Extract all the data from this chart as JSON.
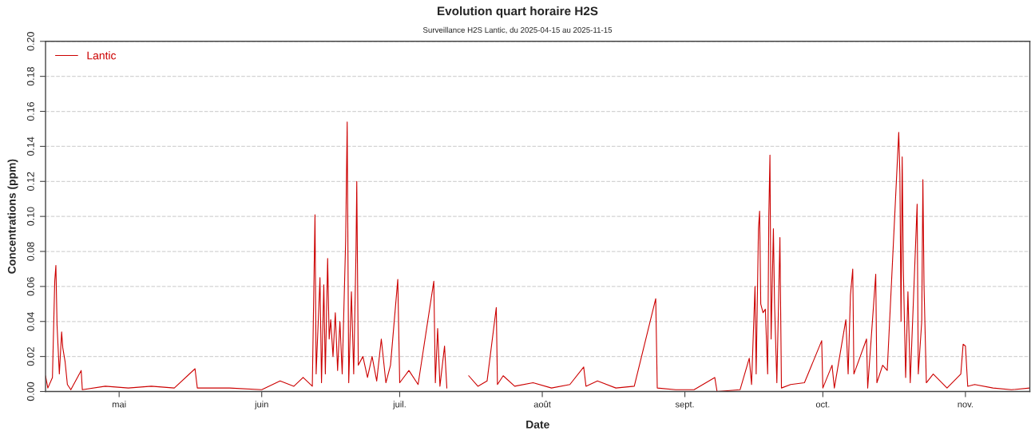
{
  "chart_data": {
    "type": "line",
    "title": "Evolution quart horaire H2S",
    "subtitle": "Surveillance H2S Lantic, du 2025-04-15 au 2025-11-15",
    "xlabel": "Date",
    "ylabel": "Concentrations (ppm)",
    "x": [
      "2025-04-15T00:00",
      "2025-04-15T12:00",
      "2025-04-16T12:00",
      "2025-04-17T00:00",
      "2025-04-17T06:00",
      "2025-04-17T12:00",
      "2025-04-18T00:00",
      "2025-04-18T12:00",
      "2025-04-18T18:00",
      "2025-04-19T06:00",
      "2025-04-19T18:00",
      "2025-04-20T12:00",
      "2025-04-22T18:00",
      "2025-04-23T00:00",
      "2025-04-28T00:00",
      "2025-05-03T00:00",
      "2025-05-08T00:00",
      "2025-05-13T00:00",
      "2025-05-17T12:00",
      "2025-05-18T00:00",
      "2025-05-25T00:00",
      "2025-06-01T00:00",
      "2025-06-05T00:00",
      "2025-06-08T00:00",
      "2025-06-10T00:00",
      "2025-06-12T00:00",
      "2025-06-12T14:00",
      "2025-06-12T20:00",
      "2025-06-13T16:00",
      "2025-06-14T00:00",
      "2025-06-14T12:00",
      "2025-06-14T20:00",
      "2025-06-15T08:00",
      "2025-06-15T16:00",
      "2025-06-16T00:00",
      "2025-06-16T12:00",
      "2025-06-17T00:00",
      "2025-06-17T12:00",
      "2025-06-18T00:00",
      "2025-06-18T12:00",
      "2025-06-19T06:00",
      "2025-06-19T14:00",
      "2025-06-19T22:00",
      "2025-06-20T12:00",
      "2025-06-21T00:00",
      "2025-06-21T12:00",
      "2025-06-21T16:00",
      "2025-06-22T00:00",
      "2025-06-23T00:00",
      "2025-06-24T00:00",
      "2025-06-25T00:00",
      "2025-06-26T00:00",
      "2025-06-27T00:00",
      "2025-06-28T00:00",
      "2025-06-29T00:00",
      "2025-06-30T14:00",
      "2025-07-01T00:00",
      "2025-07-03T00:00",
      "2025-07-05T00:00",
      "2025-07-08T10:00",
      "2025-07-08T18:00",
      "2025-07-09T06:00",
      "2025-07-09T18:00",
      "2025-07-10T18:00",
      "2025-07-11T06:00",
      "2025-07-13T00:00",
      "2025-07-16T00:00",
      "2025-07-18T00:00",
      "2025-07-20T00:00",
      "2025-07-22T00:00",
      "2025-07-22T06:00",
      "2025-07-23T12:00",
      "2025-07-26T00:00",
      "2025-07-30T00:00",
      "2025-08-03T00:00",
      "2025-08-07T00:00",
      "2025-08-10T00:00",
      "2025-08-10T12:00",
      "2025-08-13T00:00",
      "2025-08-17T00:00",
      "2025-08-21T00:00",
      "2025-08-25T16:00",
      "2025-08-26T00:00",
      "2025-08-30T00:00",
      "2025-09-03T00:00",
      "2025-09-07T12:00",
      "2025-09-08T00:00",
      "2025-09-13T00:00",
      "2025-09-15T00:00",
      "2025-09-15T12:00",
      "2025-09-16T06:00",
      "2025-09-16T12:00",
      "2025-09-17T00:00",
      "2025-09-17T06:00",
      "2025-09-17T12:00",
      "2025-09-18T00:00",
      "2025-09-18T12:00",
      "2025-09-19T00:00",
      "2025-09-19T06:00",
      "2025-09-19T12:00",
      "2025-09-19T18:00",
      "2025-09-20T06:00",
      "2025-09-20T12:00",
      "2025-09-21T00:00",
      "2025-09-21T16:00",
      "2025-09-22T00:00",
      "2025-09-24T00:00",
      "2025-09-27T00:00",
      "2025-09-30T18:00",
      "2025-10-01T00:00",
      "2025-10-03T00:00",
      "2025-10-03T12:00",
      "2025-10-06T00:00",
      "2025-10-06T12:00",
      "2025-10-07T00:00",
      "2025-10-07T12:00",
      "2025-10-07T18:00",
      "2025-10-10T12:00",
      "2025-10-10T18:00",
      "2025-10-12T12:00",
      "2025-10-12T18:00",
      "2025-10-14T00:00",
      "2025-10-15T00:00",
      "2025-10-17T12:00",
      "2025-10-17T18:00",
      "2025-10-18T00:00",
      "2025-10-18T06:00",
      "2025-10-18T12:00",
      "2025-10-19T00:00",
      "2025-10-19T12:00",
      "2025-10-20T00:00",
      "2025-10-21T12:00",
      "2025-10-21T18:00",
      "2025-10-22T12:00",
      "2025-10-22T18:00",
      "2025-10-23T00:00",
      "2025-10-23T12:00",
      "2025-10-25T00:00",
      "2025-10-28T00:00",
      "2025-10-31T00:00",
      "2025-10-31T12:00",
      "2025-11-01T00:00",
      "2025-11-01T12:00",
      "2025-11-03T00:00",
      "2025-11-07T00:00",
      "2025-11-11T00:00",
      "2025-11-15T00:00"
    ],
    "series": [
      {
        "name": "Lantic",
        "color": "#cc0000",
        "values": [
          0.009,
          0.002,
          0.008,
          0.063,
          0.072,
          0.038,
          0.01,
          0.034,
          0.025,
          0.017,
          0.004,
          0.001,
          0.012,
          0.001,
          0.003,
          0.002,
          0.003,
          0.002,
          0.013,
          0.002,
          0.002,
          0.001,
          0.006,
          0.003,
          0.008,
          0.003,
          0.101,
          0.01,
          0.065,
          0.005,
          0.061,
          0.01,
          0.076,
          0.03,
          0.041,
          0.02,
          0.045,
          0.012,
          0.04,
          0.01,
          0.086,
          0.154,
          0.005,
          0.057,
          0.01,
          0.08,
          0.12,
          0.015,
          0.02,
          0.008,
          0.02,
          0.006,
          0.03,
          0.005,
          0.015,
          0.064,
          0.005,
          0.012,
          0.004,
          0.063,
          0.005,
          0.036,
          0.003,
          0.026,
          0.002,
          null,
          0.009,
          0.003,
          0.006,
          0.048,
          0.004,
          0.009,
          0.003,
          0.005,
          0.002,
          0.004,
          0.014,
          0.003,
          0.006,
          0.002,
          0.003,
          0.053,
          0.002,
          0.001,
          0.001,
          0.008,
          0.0,
          0.001,
          0.019,
          0.004,
          0.06,
          0.01,
          0.093,
          0.103,
          0.05,
          0.045,
          0.047,
          0.01,
          0.1,
          0.135,
          0.03,
          0.093,
          0.05,
          0.005,
          0.088,
          0.002,
          0.004,
          0.005,
          0.029,
          0.002,
          0.015,
          0.002,
          0.041,
          0.01,
          0.055,
          0.07,
          0.01,
          0.03,
          0.002,
          0.067,
          0.005,
          0.015,
          0.012,
          0.148,
          0.124,
          0.04,
          0.134,
          0.07,
          0.008,
          0.057,
          0.005,
          0.107,
          0.01,
          0.04,
          0.121,
          0.06,
          0.005,
          0.01,
          0.002,
          0.01,
          0.027,
          0.026,
          0.003,
          0.004,
          0.002,
          0.001,
          0.002
        ]
      }
    ],
    "xlim": [
      "2025-04-15",
      "2025-11-15"
    ],
    "xticks": [
      {
        "value": "2025-05-01",
        "label": "mai"
      },
      {
        "value": "2025-06-01",
        "label": "juin"
      },
      {
        "value": "2025-07-01",
        "label": "juil."
      },
      {
        "value": "2025-08-01",
        "label": "août"
      },
      {
        "value": "2025-09-01",
        "label": "sept."
      },
      {
        "value": "2025-10-01",
        "label": "oct."
      },
      {
        "value": "2025-11-01",
        "label": "nov."
      }
    ],
    "ylim": [
      0,
      0.2
    ],
    "yticks": [
      {
        "value": 0,
        "label": "0.00"
      },
      {
        "value": 0.02,
        "label": "0.02"
      },
      {
        "value": 0.04,
        "label": "0.04"
      },
      {
        "value": 0.06,
        "label": "0.06"
      },
      {
        "value": 0.08,
        "label": "0.08"
      },
      {
        "value": 0.1,
        "label": "0.10"
      },
      {
        "value": 0.12,
        "label": "0.12"
      },
      {
        "value": 0.14,
        "label": "0.14"
      },
      {
        "value": 0.16,
        "label": "0.16"
      },
      {
        "value": 0.18,
        "label": "0.18"
      },
      {
        "value": 0.2,
        "label": "0.20"
      }
    ],
    "grid": "y",
    "legend": "top left",
    "marker": "none",
    "line_style": "solid"
  }
}
